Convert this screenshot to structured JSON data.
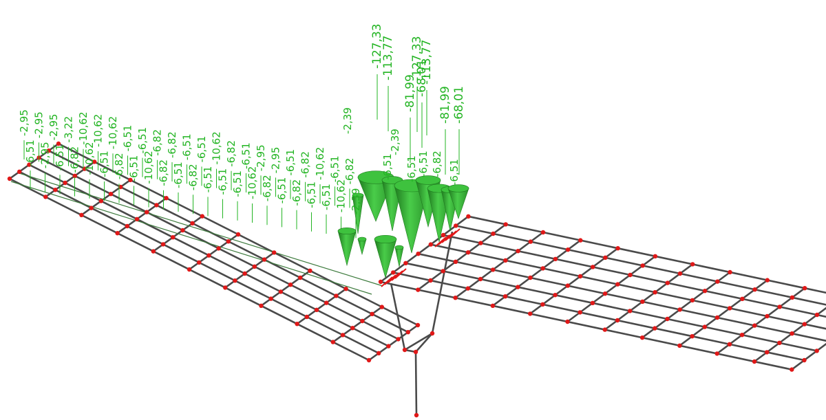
{
  "colors": {
    "background": "#ffffff",
    "grid": "#4a4a4a",
    "node": "#e01818",
    "load": "#3ec23e",
    "load_dark": "#1f7a1f",
    "label": "#22b422",
    "support": "#e01818"
  },
  "icons": [
    "node-dot",
    "load-cone",
    "support-mark"
  ],
  "large_loads": [
    {
      "value": "-127,33"
    },
    {
      "value": "-113,77"
    },
    {
      "value": "-81,99"
    },
    {
      "value": "-68,01"
    },
    {
      "value": "-127,33"
    },
    {
      "value": "-113,77"
    },
    {
      "value": "-81,99"
    },
    {
      "value": "-68,01"
    }
  ],
  "medium_loads": [
    {
      "value": "-2,39"
    },
    {
      "value": "-2,39"
    },
    {
      "value": "-6,51"
    },
    {
      "value": "-6,51"
    },
    {
      "value": "-6,51"
    },
    {
      "value": "-6,82"
    },
    {
      "value": "-6,51"
    }
  ],
  "cluster_labels": [
    "-2,95",
    "-2,95",
    "-2,95",
    "-3,22",
    "-10,62",
    "-10,62",
    "-10,62",
    "-6,51",
    "-6,51",
    "-6,82",
    "-6,82",
    "-6,51",
    "-6,51",
    "-10,62",
    "-6,82",
    "-6,51",
    "-2,95",
    "-2,95",
    "-6,51",
    "-6,82",
    "-10,62",
    "-6,51",
    "-6,82",
    "-6,51",
    "-2,95",
    "-6,51",
    "-6,82",
    "-10,62",
    "-6,51",
    "-6,82",
    "-6,51",
    "-10,62",
    "-6,82",
    "-6,51",
    "-6,82",
    "-6,51",
    "-6,51",
    "-6,51",
    "-10,62",
    "-6,82",
    "-6,51",
    "-6,82",
    "-6,51",
    "-6,51",
    "-10,62",
    "-2,39"
  ]
}
